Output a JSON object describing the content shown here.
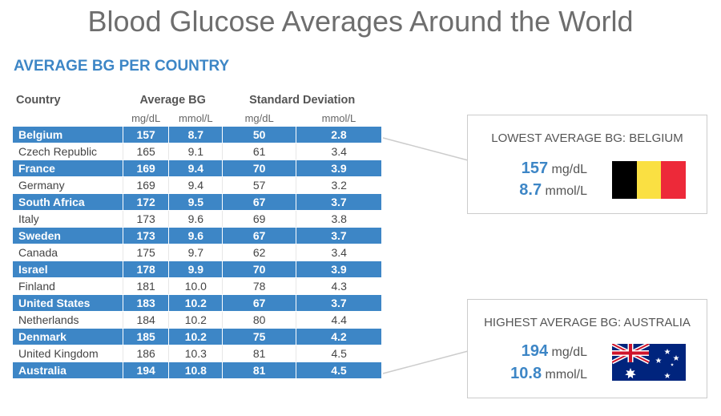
{
  "title": "Blood Glucose Averages Around the World",
  "subtitle": "AVERAGE BG PER COUNTRY",
  "colors": {
    "accent": "#3d86c6",
    "title_gray": "#6e6e6e"
  },
  "chart_data": {
    "type": "table",
    "columns": {
      "country": "Country",
      "average": "Average BG",
      "stddev": "Standard Deviation",
      "unit_mg": "mg/dL",
      "unit_mmol": "mmol/L"
    },
    "rows": [
      {
        "country": "Belgium",
        "avg_mg": "157",
        "avg_mmol": "8.7",
        "sd_mg": "50",
        "sd_mmol": "2.8"
      },
      {
        "country": "Czech Republic",
        "avg_mg": "165",
        "avg_mmol": "9.1",
        "sd_mg": "61",
        "sd_mmol": "3.4"
      },
      {
        "country": "France",
        "avg_mg": "169",
        "avg_mmol": "9.4",
        "sd_mg": "70",
        "sd_mmol": "3.9"
      },
      {
        "country": "Germany",
        "avg_mg": "169",
        "avg_mmol": "9.4",
        "sd_mg": "57",
        "sd_mmol": "3.2"
      },
      {
        "country": "South Africa",
        "avg_mg": "172",
        "avg_mmol": "9.5",
        "sd_mg": "67",
        "sd_mmol": "3.7"
      },
      {
        "country": "Italy",
        "avg_mg": "173",
        "avg_mmol": "9.6",
        "sd_mg": "69",
        "sd_mmol": "3.8"
      },
      {
        "country": "Sweden",
        "avg_mg": "173",
        "avg_mmol": "9.6",
        "sd_mg": "67",
        "sd_mmol": "3.7"
      },
      {
        "country": "Canada",
        "avg_mg": "175",
        "avg_mmol": "9.7",
        "sd_mg": "62",
        "sd_mmol": "3.4"
      },
      {
        "country": "Israel",
        "avg_mg": "178",
        "avg_mmol": "9.9",
        "sd_mg": "70",
        "sd_mmol": "3.9"
      },
      {
        "country": "Finland",
        "avg_mg": "181",
        "avg_mmol": "10.0",
        "sd_mg": "78",
        "sd_mmol": "4.3"
      },
      {
        "country": "United States",
        "avg_mg": "183",
        "avg_mmol": "10.2",
        "sd_mg": "67",
        "sd_mmol": "3.7"
      },
      {
        "country": "Netherlands",
        "avg_mg": "184",
        "avg_mmol": "10.2",
        "sd_mg": "80",
        "sd_mmol": "4.4"
      },
      {
        "country": "Denmark",
        "avg_mg": "185",
        "avg_mmol": "10.2",
        "sd_mg": "75",
        "sd_mmol": "4.2"
      },
      {
        "country": "United Kingdom",
        "avg_mg": "186",
        "avg_mmol": "10.3",
        "sd_mg": "81",
        "sd_mmol": "4.5"
      },
      {
        "country": "Australia",
        "avg_mg": "194",
        "avg_mmol": "10.8",
        "sd_mg": "81",
        "sd_mmol": "4.5"
      }
    ]
  },
  "lowest": {
    "heading": "LOWEST AVERAGE BG: BELGIUM",
    "mg_value": "157",
    "mg_unit": "mg/dL",
    "mmol_value": "8.7",
    "mmol_unit": "mmol/L",
    "flag": "belgium-flag-icon"
  },
  "highest": {
    "heading": "HIGHEST AVERAGE BG: AUSTRALIA",
    "mg_value": "194",
    "mg_unit": "mg/dL",
    "mmol_value": "10.8",
    "mmol_unit": "mmol/L",
    "flag": "australia-flag-icon"
  }
}
